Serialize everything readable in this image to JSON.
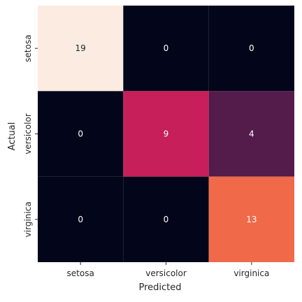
{
  "chart_data": {
    "type": "heatmap",
    "xlabel": "Predicted",
    "ylabel": "Actual",
    "x_categories": [
      "setosa",
      "versicolor",
      "virginica"
    ],
    "y_categories": [
      "setosa",
      "versicolor",
      "virginica"
    ],
    "values": [
      [
        19,
        0,
        0
      ],
      [
        0,
        9,
        4
      ],
      [
        0,
        0,
        13
      ]
    ],
    "cell_colors": [
      [
        "#fbebe0",
        "#03051a",
        "#03051a"
      ],
      [
        "#03051a",
        "#c61f59",
        "#531c4a"
      ],
      [
        "#03051a",
        "#03051a",
        "#f06a4a"
      ]
    ],
    "label_colors": [
      [
        "#262626",
        "#ffffff",
        "#ffffff"
      ],
      [
        "#ffffff",
        "#ffffff",
        "#ffffff"
      ],
      [
        "#ffffff",
        "#ffffff",
        "#ffffff"
      ]
    ],
    "colorbar": false,
    "grid": false
  }
}
